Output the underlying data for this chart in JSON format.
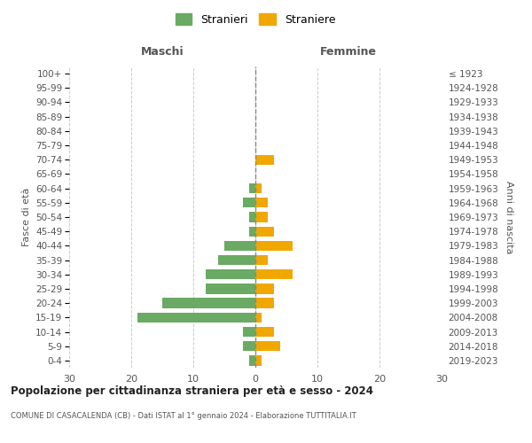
{
  "age_groups": [
    "0-4",
    "5-9",
    "10-14",
    "15-19",
    "20-24",
    "25-29",
    "30-34",
    "35-39",
    "40-44",
    "45-49",
    "50-54",
    "55-59",
    "60-64",
    "65-69",
    "70-74",
    "75-79",
    "80-84",
    "85-89",
    "90-94",
    "95-99",
    "100+"
  ],
  "birth_years": [
    "2019-2023",
    "2014-2018",
    "2009-2013",
    "2004-2008",
    "1999-2003",
    "1994-1998",
    "1989-1993",
    "1984-1988",
    "1979-1983",
    "1974-1978",
    "1969-1973",
    "1964-1968",
    "1959-1963",
    "1954-1958",
    "1949-1953",
    "1944-1948",
    "1939-1943",
    "1934-1938",
    "1929-1933",
    "1924-1928",
    "≤ 1923"
  ],
  "maschi": [
    1,
    2,
    2,
    19,
    15,
    8,
    8,
    6,
    5,
    1,
    1,
    2,
    1,
    0,
    0,
    0,
    0,
    0,
    0,
    0,
    0
  ],
  "femmine": [
    1,
    4,
    3,
    1,
    3,
    3,
    6,
    2,
    6,
    3,
    2,
    2,
    1,
    0,
    3,
    0,
    0,
    0,
    0,
    0,
    0
  ],
  "color_maschi": "#6aaa64",
  "color_femmine": "#f0a800",
  "title": "Popolazione per cittadinanza straniera per età e sesso - 2024",
  "subtitle": "COMUNE DI CASACALENDA (CB) - Dati ISTAT al 1° gennaio 2024 - Elaborazione TUTTITALIA.IT",
  "ylabel_left": "Fasce di età",
  "ylabel_right": "Anni di nascita",
  "xlabel_maschi": "Maschi",
  "xlabel_femmine": "Femmine",
  "legend_maschi": "Stranieri",
  "legend_femmine": "Straniere",
  "xlim": 30,
  "background_color": "#ffffff",
  "grid_color": "#cccccc"
}
